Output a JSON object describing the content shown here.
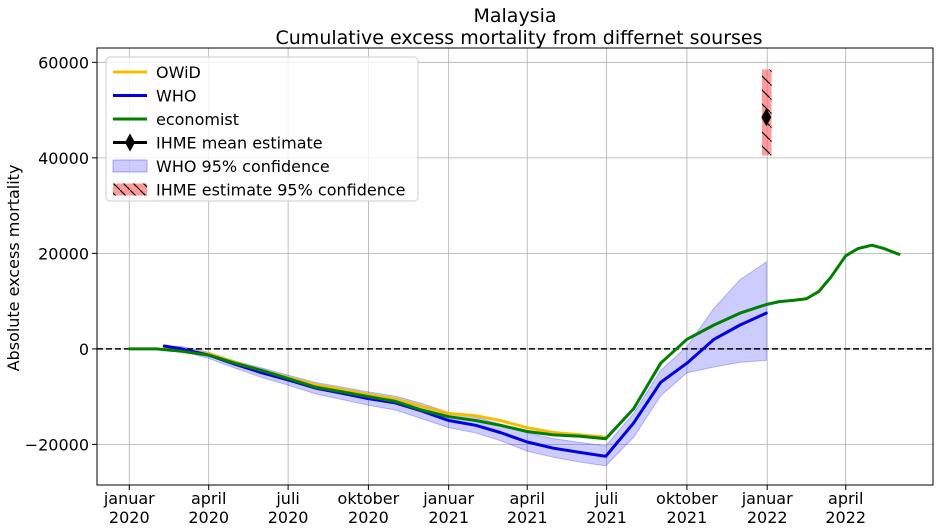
{
  "chart_data": {
    "type": "line",
    "title": "Malaysia",
    "subtitle": "Cumulative excess mortality from differnet sourses",
    "xlabel": "",
    "ylabel": "Absolute excess mortality",
    "xlim": [
      "2019-11-25",
      "2022-07-10"
    ],
    "ylim": [
      -28500,
      63000
    ],
    "grid": true,
    "legend_position": "top-left",
    "x_ticks": [
      {
        "date": "2020-01-01",
        "line1": "januar",
        "line2": "2020"
      },
      {
        "date": "2020-04-01",
        "line1": "april",
        "line2": "2020"
      },
      {
        "date": "2020-07-01",
        "line1": "juli",
        "line2": "2020"
      },
      {
        "date": "2020-10-01",
        "line1": "oktober",
        "line2": "2020"
      },
      {
        "date": "2021-01-01",
        "line1": "januar",
        "line2": "2021"
      },
      {
        "date": "2021-04-01",
        "line1": "april",
        "line2": "2021"
      },
      {
        "date": "2021-07-01",
        "line1": "juli",
        "line2": "2021"
      },
      {
        "date": "2021-10-01",
        "line1": "oktober",
        "line2": "2021"
      },
      {
        "date": "2022-01-01",
        "line1": "januar",
        "line2": "2022"
      },
      {
        "date": "2022-04-01",
        "line1": "april",
        "line2": "2022"
      }
    ],
    "y_ticks": [
      {
        "value": -20000,
        "label": "−20000"
      },
      {
        "value": 0,
        "label": "0"
      },
      {
        "value": 20000,
        "label": "20000"
      },
      {
        "value": 40000,
        "label": "40000"
      },
      {
        "value": 60000,
        "label": "60000"
      }
    ],
    "zero_line": {
      "value": 0,
      "color": "#000000",
      "style": "dashed"
    },
    "series": [
      {
        "name": "OWiD",
        "color": "#f5bd00",
        "points": [
          [
            "2020-02-10",
            400
          ],
          [
            "2020-03-01",
            -200
          ],
          [
            "2020-04-01",
            -1000
          ],
          [
            "2020-05-01",
            -2800
          ],
          [
            "2020-06-01",
            -4500
          ],
          [
            "2020-07-01",
            -6000
          ],
          [
            "2020-08-01",
            -7500
          ],
          [
            "2020-09-01",
            -8500
          ],
          [
            "2020-10-01",
            -9500
          ],
          [
            "2020-11-01",
            -10500
          ],
          [
            "2020-12-01",
            -12000
          ],
          [
            "2021-01-01",
            -13500
          ],
          [
            "2021-02-01",
            -14000
          ],
          [
            "2021-03-01",
            -15000
          ],
          [
            "2021-04-01",
            -16500
          ],
          [
            "2021-05-01",
            -17500
          ],
          [
            "2021-06-01",
            -18000
          ],
          [
            "2021-06-30",
            -18500
          ]
        ]
      },
      {
        "name": "WHO",
        "color": "#0000e6",
        "points": [
          [
            "2020-02-10",
            600
          ],
          [
            "2020-03-01",
            0
          ],
          [
            "2020-04-01",
            -1300
          ],
          [
            "2020-05-01",
            -3200
          ],
          [
            "2020-06-01",
            -5000
          ],
          [
            "2020-07-01",
            -6500
          ],
          [
            "2020-08-01",
            -8200
          ],
          [
            "2020-09-01",
            -9300
          ],
          [
            "2020-10-01",
            -10400
          ],
          [
            "2020-11-01",
            -11300
          ],
          [
            "2020-12-01",
            -13000
          ],
          [
            "2021-01-01",
            -15000
          ],
          [
            "2021-02-01",
            -16000
          ],
          [
            "2021-03-01",
            -17500
          ],
          [
            "2021-04-01",
            -19500
          ],
          [
            "2021-05-01",
            -20800
          ],
          [
            "2021-06-01",
            -21700
          ],
          [
            "2021-06-30",
            -22500
          ],
          [
            "2021-08-01",
            -15500
          ],
          [
            "2021-09-01",
            -7000
          ],
          [
            "2021-10-01",
            -3000
          ],
          [
            "2021-11-01",
            2000
          ],
          [
            "2021-12-01",
            5000
          ],
          [
            "2021-12-31",
            7500
          ]
        ]
      },
      {
        "name": "economist",
        "color": "#008000",
        "points": [
          [
            "2020-01-01",
            0
          ],
          [
            "2020-02-01",
            0
          ],
          [
            "2020-03-01",
            -500
          ],
          [
            "2020-04-01",
            -1300
          ],
          [
            "2020-05-01",
            -3000
          ],
          [
            "2020-06-01",
            -4500
          ],
          [
            "2020-07-01",
            -6200
          ],
          [
            "2020-08-01",
            -8000
          ],
          [
            "2020-09-01",
            -9000
          ],
          [
            "2020-10-01",
            -10000
          ],
          [
            "2020-11-01",
            -11000
          ],
          [
            "2020-12-01",
            -12800
          ],
          [
            "2021-01-01",
            -14200
          ],
          [
            "2021-02-01",
            -15000
          ],
          [
            "2021-03-01",
            -16000
          ],
          [
            "2021-04-01",
            -17300
          ],
          [
            "2021-05-01",
            -18000
          ],
          [
            "2021-06-01",
            -18300
          ],
          [
            "2021-06-30",
            -18800
          ],
          [
            "2021-08-01",
            -12500
          ],
          [
            "2021-09-01",
            -3000
          ],
          [
            "2021-10-01",
            2000
          ],
          [
            "2021-11-01",
            5000
          ],
          [
            "2021-12-01",
            7500
          ],
          [
            "2021-12-31",
            9300
          ],
          [
            "2022-01-15",
            9900
          ],
          [
            "2022-02-01",
            10200
          ],
          [
            "2022-02-15",
            10500
          ],
          [
            "2022-03-01",
            12000
          ],
          [
            "2022-03-15",
            15000
          ],
          [
            "2022-04-01",
            19500
          ],
          [
            "2022-04-15",
            21000
          ],
          [
            "2022-05-01",
            21700
          ],
          [
            "2022-05-15",
            21000
          ],
          [
            "2022-06-01",
            19800
          ]
        ]
      }
    ],
    "bands": [
      {
        "name": "WHO 95% confidence",
        "color": "#0000ff",
        "opacity": 0.2,
        "points": [
          [
            "2020-02-10",
            600,
            600
          ],
          [
            "2020-03-01",
            -500,
            500
          ],
          [
            "2020-04-01",
            -2000,
            -700
          ],
          [
            "2020-05-01",
            -4000,
            -2500
          ],
          [
            "2020-06-01",
            -6000,
            -4000
          ],
          [
            "2020-07-01",
            -7600,
            -5500
          ],
          [
            "2020-08-01",
            -9400,
            -7000
          ],
          [
            "2020-09-01",
            -10600,
            -8000
          ],
          [
            "2020-10-01",
            -11800,
            -9000
          ],
          [
            "2020-11-01",
            -12800,
            -9900
          ],
          [
            "2020-12-01",
            -14600,
            -11400
          ],
          [
            "2021-01-01",
            -16500,
            -13300
          ],
          [
            "2021-02-01",
            -17600,
            -14300
          ],
          [
            "2021-03-01",
            -19200,
            -15700
          ],
          [
            "2021-04-01",
            -21400,
            -17600
          ],
          [
            "2021-05-01",
            -22700,
            -18800
          ],
          [
            "2021-06-01",
            -23700,
            -19600
          ],
          [
            "2021-06-30",
            -24500,
            -20300
          ],
          [
            "2021-08-01",
            -18500,
            -13500
          ],
          [
            "2021-09-01",
            -9800,
            -4500
          ],
          [
            "2021-10-01",
            -5000,
            500
          ],
          [
            "2021-11-01",
            -3800,
            8500
          ],
          [
            "2021-12-01",
            -2800,
            14500
          ],
          [
            "2021-12-31",
            -2400,
            18200
          ]
        ]
      },
      {
        "name": " IHME estimate 95% confidence",
        "color": "#ff6666",
        "opacity": 0.65,
        "hatch": "\\",
        "x_start": "2021-12-26",
        "x_end": "2022-01-06",
        "lower": 40500,
        "upper": 58500
      }
    ],
    "points_series": [
      {
        "name": "IHME mean estimate",
        "color": "#000000",
        "marker": "diamond",
        "x": "2021-12-31",
        "y": 48500,
        "yerr": [
          48000,
          49000
        ]
      }
    ],
    "legend": [
      {
        "label": "OWiD",
        "kind": "line",
        "color": "#f5bd00"
      },
      {
        "label": "WHO",
        "kind": "line",
        "color": "#0000e6"
      },
      {
        "label": "economist",
        "kind": "line",
        "color": "#008000"
      },
      {
        "label": "IHME mean estimate",
        "kind": "marker-line",
        "color": "#000000"
      },
      {
        "label": "WHO 95% confidence",
        "kind": "patch",
        "color": "#0000ff",
        "opacity": 0.2
      },
      {
        "label": " IHME estimate 95% confidence",
        "kind": "hatch-patch",
        "color": "#ff6666",
        "opacity": 0.65
      }
    ]
  }
}
